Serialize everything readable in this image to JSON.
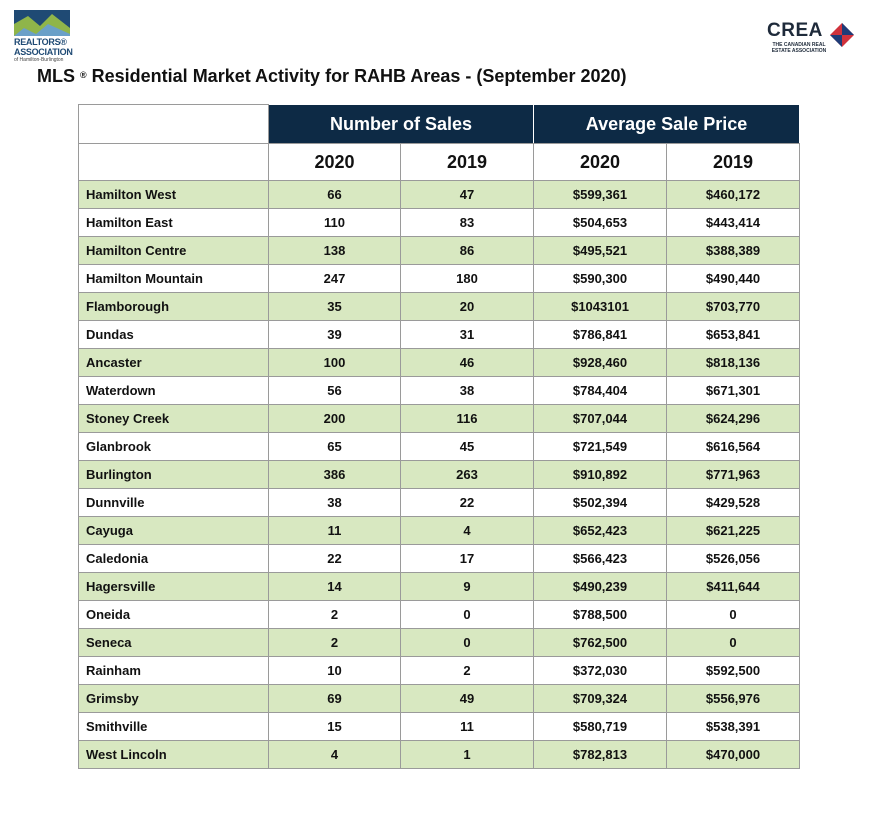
{
  "header": {
    "left_logo": {
      "line1": "REALTORS®",
      "line2": "ASSOCIATION",
      "line3": "of Hamilton-Burlington",
      "colors": {
        "dark": "#1f4a74",
        "green": "#8fb54a",
        "light": "#6aa0c8"
      }
    },
    "right_logo": {
      "word": "CREA",
      "tagline": "THE CANADIAN REAL ESTATE ASSOCIATION",
      "colors": {
        "blue": "#1e3c78",
        "red": "#d0323c"
      }
    }
  },
  "title": {
    "prefix": "MLS",
    "mark": "®",
    "rest": " Residential Market Activity for RAHB Areas - (September 2020)"
  },
  "table": {
    "groups": [
      "Number of Sales",
      "Average Sale Price"
    ],
    "years": [
      "2020",
      "2019",
      "2020",
      "2019"
    ],
    "colors": {
      "header_bg": "#0d2a45",
      "shade": "#d8e8c1"
    },
    "rows": [
      {
        "area": "Hamilton West",
        "sales_2020": "66",
        "sales_2019": "47",
        "price_2020": "$599,361",
        "price_2019": "$460,172"
      },
      {
        "area": "Hamilton East",
        "sales_2020": "110",
        "sales_2019": "83",
        "price_2020": "$504,653",
        "price_2019": "$443,414"
      },
      {
        "area": "Hamilton Centre",
        "sales_2020": "138",
        "sales_2019": "86",
        "price_2020": "$495,521",
        "price_2019": "$388,389"
      },
      {
        "area": "Hamilton Mountain",
        "sales_2020": "247",
        "sales_2019": "180",
        "price_2020": "$590,300",
        "price_2019": "$490,440"
      },
      {
        "area": "Flamborough",
        "sales_2020": "35",
        "sales_2019": "20",
        "price_2020": "$1043101",
        "price_2019": "$703,770"
      },
      {
        "area": "Dundas",
        "sales_2020": "39",
        "sales_2019": "31",
        "price_2020": "$786,841",
        "price_2019": "$653,841"
      },
      {
        "area": "Ancaster",
        "sales_2020": "100",
        "sales_2019": "46",
        "price_2020": "$928,460",
        "price_2019": "$818,136"
      },
      {
        "area": "Waterdown",
        "sales_2020": "56",
        "sales_2019": "38",
        "price_2020": "$784,404",
        "price_2019": "$671,301"
      },
      {
        "area": "Stoney Creek",
        "sales_2020": "200",
        "sales_2019": "116",
        "price_2020": "$707,044",
        "price_2019": "$624,296"
      },
      {
        "area": "Glanbrook",
        "sales_2020": "65",
        "sales_2019": "45",
        "price_2020": "$721,549",
        "price_2019": "$616,564"
      },
      {
        "area": "Burlington",
        "sales_2020": "386",
        "sales_2019": "263",
        "price_2020": "$910,892",
        "price_2019": "$771,963"
      },
      {
        "area": "Dunnville",
        "sales_2020": "38",
        "sales_2019": "22",
        "price_2020": "$502,394",
        "price_2019": "$429,528"
      },
      {
        "area": "Cayuga",
        "sales_2020": "11",
        "sales_2019": "4",
        "price_2020": "$652,423",
        "price_2019": "$621,225"
      },
      {
        "area": "Caledonia",
        "sales_2020": "22",
        "sales_2019": "17",
        "price_2020": "$566,423",
        "price_2019": "$526,056"
      },
      {
        "area": "Hagersville",
        "sales_2020": "14",
        "sales_2019": "9",
        "price_2020": "$490,239",
        "price_2019": "$411,644"
      },
      {
        "area": "Oneida",
        "sales_2020": "2",
        "sales_2019": "0",
        "price_2020": "$788,500",
        "price_2019": "0"
      },
      {
        "area": "Seneca",
        "sales_2020": "2",
        "sales_2019": "0",
        "price_2020": "$762,500",
        "price_2019": "0"
      },
      {
        "area": "Rainham",
        "sales_2020": "10",
        "sales_2019": "2",
        "price_2020": "$372,030",
        "price_2019": "$592,500"
      },
      {
        "area": "Grimsby",
        "sales_2020": "69",
        "sales_2019": "49",
        "price_2020": "$709,324",
        "price_2019": "$556,976"
      },
      {
        "area": "Smithville",
        "sales_2020": "15",
        "sales_2019": "11",
        "price_2020": "$580,719",
        "price_2019": "$538,391"
      },
      {
        "area": "West Lincoln",
        "sales_2020": "4",
        "sales_2019": "1",
        "price_2020": "$782,813",
        "price_2019": "$470,000"
      }
    ]
  }
}
